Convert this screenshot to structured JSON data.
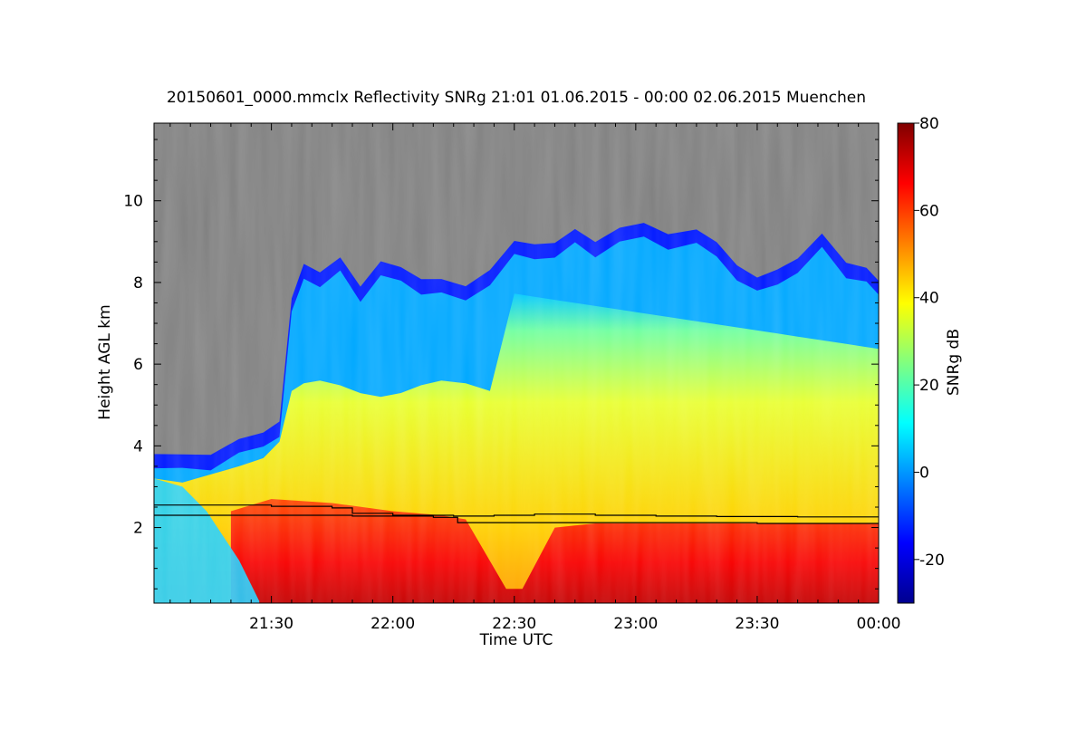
{
  "chart_data": {
    "type": "heatmap",
    "title": "20150601_0000.mmclx Reflectivity SNRg   21:01 01.06.2015 - 00:00 02.06.2015 Muenchen",
    "xlabel": "Time UTC",
    "ylabel": "Height AGL km",
    "x_ticks": [
      "21:30",
      "22:00",
      "22:30",
      "23:00",
      "23:30",
      "00:00"
    ],
    "x_tick_minutes": [
      30,
      60,
      90,
      120,
      150,
      180
    ],
    "xlim_minutes": [
      1,
      180
    ],
    "y_ticks": [
      2,
      4,
      6,
      8,
      10
    ],
    "ylim": [
      0.15,
      11.9
    ],
    "colorbar": {
      "label": "SNRg dB",
      "ticks": [
        -20,
        0,
        20,
        40,
        60,
        80
      ],
      "range": [
        -30,
        80
      ],
      "colors": [
        "#00008f",
        "#0000ff",
        "#0080ff",
        "#00ffff",
        "#80ff80",
        "#ffff00",
        "#ff8000",
        "#ff0000",
        "#800000"
      ]
    },
    "background_color": "#808080",
    "cloud_top_km": [
      [
        1,
        3.8
      ],
      [
        8,
        3.7
      ],
      [
        15,
        3.9
      ],
      [
        22,
        4.1
      ],
      [
        28,
        4.3
      ],
      [
        32,
        4.7
      ],
      [
        35,
        7.5
      ],
      [
        38,
        8.5
      ],
      [
        42,
        8.3
      ],
      [
        47,
        8.5
      ],
      [
        52,
        8.0
      ],
      [
        57,
        8.5
      ],
      [
        62,
        8.3
      ],
      [
        67,
        8.2
      ],
      [
        72,
        8.0
      ],
      [
        78,
        7.9
      ],
      [
        84,
        8.4
      ],
      [
        90,
        8.9
      ],
      [
        95,
        9.0
      ],
      [
        100,
        9.0
      ],
      [
        105,
        9.2
      ],
      [
        110,
        9.1
      ],
      [
        116,
        9.3
      ],
      [
        122,
        9.4
      ],
      [
        128,
        9.3
      ],
      [
        135,
        9.2
      ],
      [
        140,
        9.0
      ],
      [
        145,
        8.5
      ],
      [
        150,
        8.0
      ],
      [
        155,
        8.4
      ],
      [
        160,
        8.6
      ],
      [
        166,
        9.1
      ],
      [
        172,
        8.6
      ],
      [
        177,
        8.3
      ],
      [
        180,
        8.0
      ]
    ],
    "boundary_lines_km": [
      {
        "points": [
          [
            1,
            2.55
          ],
          [
            20,
            2.55
          ],
          [
            30,
            2.52
          ],
          [
            45,
            2.48
          ],
          [
            50,
            2.35
          ],
          [
            60,
            2.3
          ],
          [
            75,
            2.28
          ],
          [
            85,
            2.3
          ],
          [
            95,
            2.33
          ],
          [
            110,
            2.3
          ],
          [
            125,
            2.28
          ],
          [
            140,
            2.27
          ],
          [
            160,
            2.26
          ],
          [
            180,
            2.25
          ]
        ]
      },
      {
        "points": [
          [
            1,
            2.3
          ],
          [
            30,
            2.3
          ],
          [
            50,
            2.28
          ],
          [
            70,
            2.25
          ],
          [
            75,
            2.25
          ],
          [
            76,
            2.12
          ],
          [
            110,
            2.12
          ],
          [
            150,
            2.1
          ],
          [
            180,
            2.1
          ]
        ]
      }
    ]
  }
}
